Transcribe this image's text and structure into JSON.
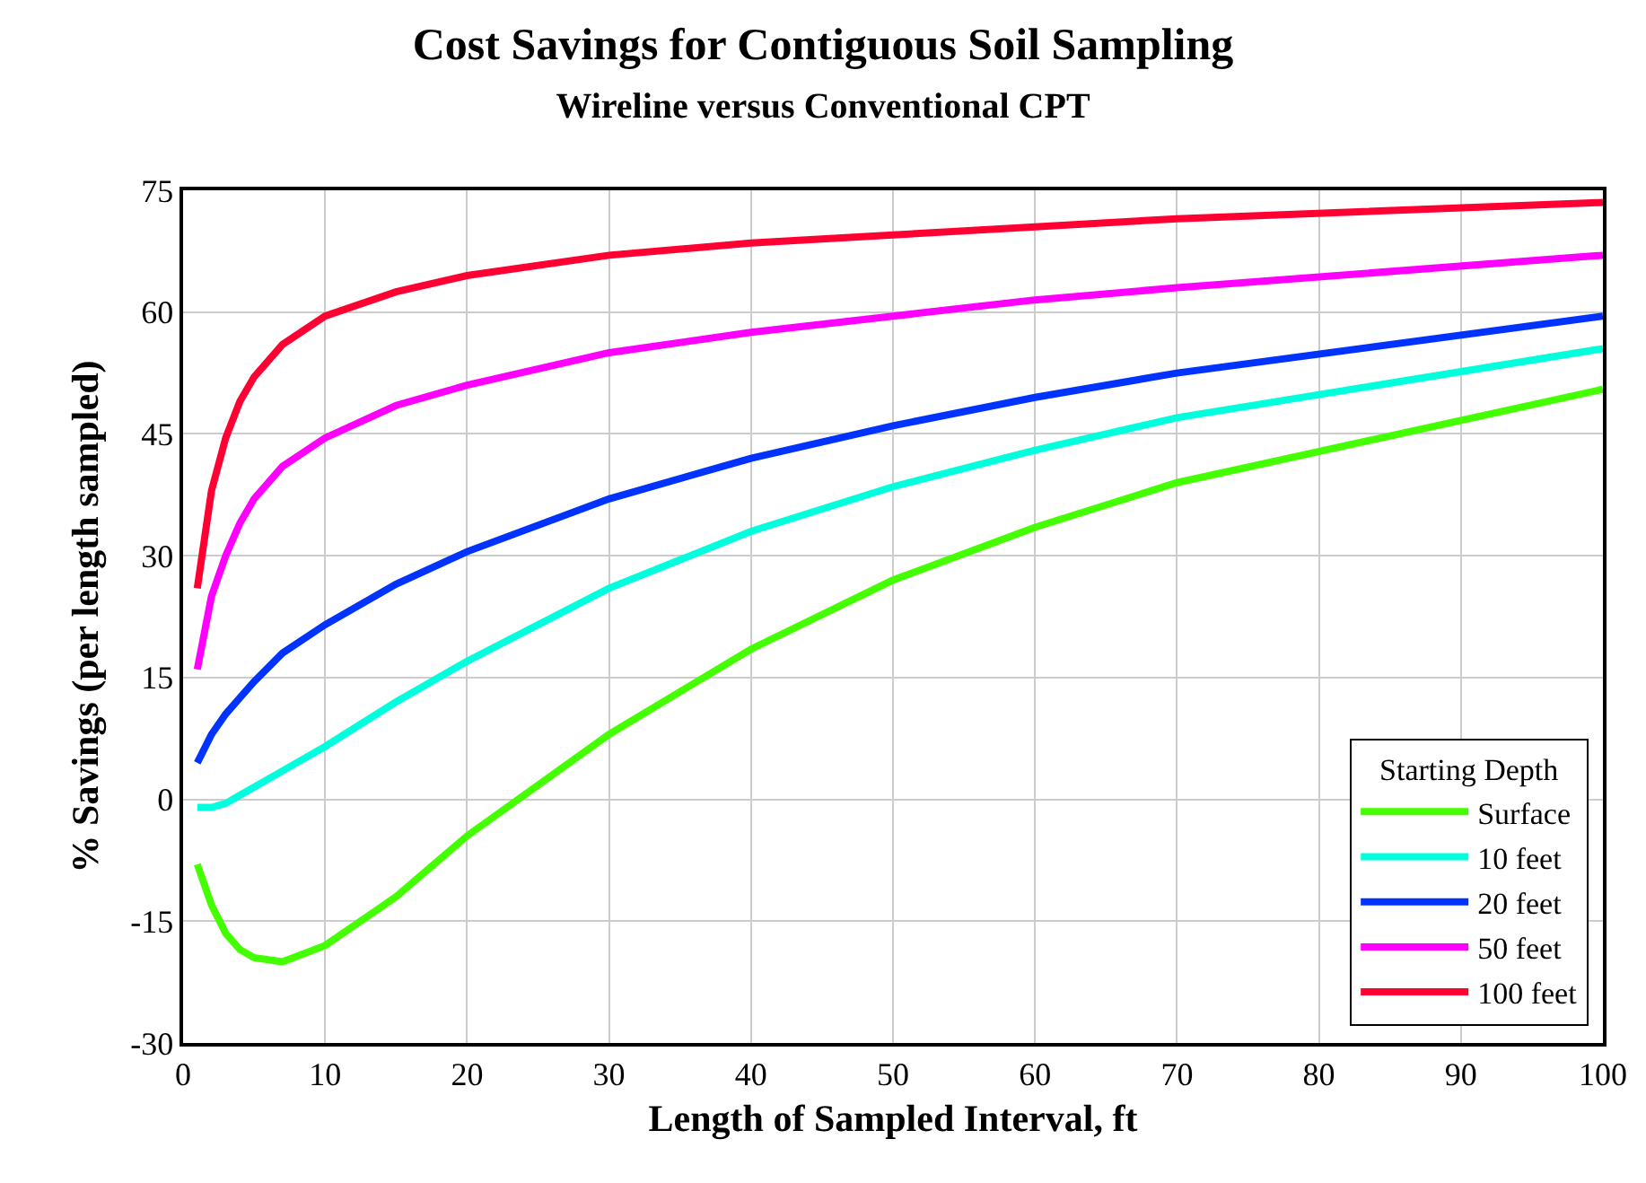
{
  "chart_data": {
    "type": "line",
    "title": "Cost Savings for Contiguous Soil Sampling",
    "subtitle": "Wireline versus Conventional CPT",
    "xlabel": "Length of Sampled Interval, ft",
    "ylabel": "% Savings (per length sampled)",
    "legend_title": "Starting Depth",
    "x": [
      1,
      2,
      3,
      4,
      5,
      7,
      10,
      15,
      20,
      30,
      40,
      50,
      60,
      70,
      100
    ],
    "series": [
      {
        "name": "Surface",
        "color": "#44ff00",
        "values": [
          -8,
          -13,
          -16.5,
          -18.5,
          -19.5,
          -20,
          -18,
          -12,
          -4.5,
          8,
          18.5,
          27,
          33.5,
          39,
          50.5
        ]
      },
      {
        "name": "10 feet",
        "color": "#00ffdd",
        "values": [
          -1,
          -1,
          -0.5,
          0.5,
          1.5,
          3.5,
          6.5,
          12,
          17,
          26,
          33,
          38.5,
          43,
          47,
          55.5
        ]
      },
      {
        "name": "20 feet",
        "color": "#0033ff",
        "values": [
          4.5,
          8,
          10.5,
          12.5,
          14.5,
          18,
          21.5,
          26.5,
          30.5,
          37,
          42,
          46,
          49.5,
          52.5,
          59.5
        ]
      },
      {
        "name": "50 feet",
        "color": "#ff00ff",
        "values": [
          16,
          25,
          30,
          34,
          37,
          41,
          44.5,
          48.5,
          51,
          55,
          57.5,
          59.5,
          61.5,
          63,
          67
        ]
      },
      {
        "name": "100 feet",
        "color": "#ff0033",
        "values": [
          26,
          38,
          44.5,
          49,
          52,
          56,
          59.5,
          62.5,
          64.5,
          67,
          68.5,
          69.5,
          70.5,
          71.5,
          73.5
        ]
      }
    ],
    "xlim": [
      0,
      100
    ],
    "xticks": [
      0,
      10,
      20,
      30,
      40,
      50,
      60,
      70,
      80,
      90,
      100
    ],
    "ylim": [
      -30,
      75
    ],
    "yticks": [
      -30,
      -15,
      0,
      15,
      30,
      45,
      60,
      75
    ],
    "grid": true,
    "legend": "bottom right",
    "marker": "none",
    "line_style": "solid"
  }
}
